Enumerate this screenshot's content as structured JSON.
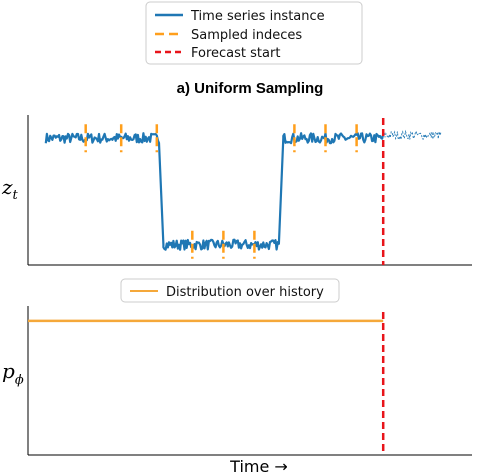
{
  "colors": {
    "series": "#1f77b4",
    "sampled": "#ff9f1c",
    "forecast": "#e8141a",
    "distribution": "#f5a83a",
    "axis": "#000000"
  },
  "chart_data": [
    {
      "type": "line",
      "title": "a) Uniform Sampling",
      "ylabel_main": "z",
      "ylabel_sub": "t",
      "legend": {
        "placement": "top-center",
        "entries": [
          "Time series instance",
          "Sampled indeces",
          "Forecast start"
        ]
      },
      "xlim": [
        0,
        100
      ],
      "ylim": [
        0,
        1
      ],
      "grid": false,
      "series": [
        {
          "name": "Time series instance",
          "segments": [
            {
              "x_start": 4,
              "x_end": 29.5,
              "level": 0.86
            },
            {
              "x_start": 30.5,
              "x_end": 56.5,
              "level": 0.12
            },
            {
              "x_start": 57.5,
              "x_end": 80,
              "level": 0.86
            }
          ],
          "transitions": [
            {
              "x0": 29.5,
              "x1": 30.5,
              "y0": 0.86,
              "y1": 0.12
            },
            {
              "x0": 56.5,
              "x1": 57.5,
              "y0": 0.12,
              "y1": 0.86
            }
          ],
          "forecast_tail": {
            "x_start": 80,
            "x_end": 93,
            "level": 0.88
          }
        }
      ],
      "sampled_indices": [
        13,
        21,
        29,
        37,
        44,
        51,
        60,
        67,
        74
      ],
      "forecast_start": 80
    },
    {
      "type": "line",
      "ylabel_main": "p",
      "ylabel_sub": "ϕ",
      "xlabel": "Time →",
      "legend": {
        "placement": "top-center",
        "entries": [
          "Distribution over history"
        ]
      },
      "xlim": [
        0,
        100
      ],
      "ylim": [
        0,
        1
      ],
      "grid": false,
      "series": [
        {
          "name": "Distribution over history",
          "x": [
            0,
            80
          ],
          "y": [
            0.9,
            0.9
          ]
        }
      ],
      "forecast_start": 80
    }
  ]
}
